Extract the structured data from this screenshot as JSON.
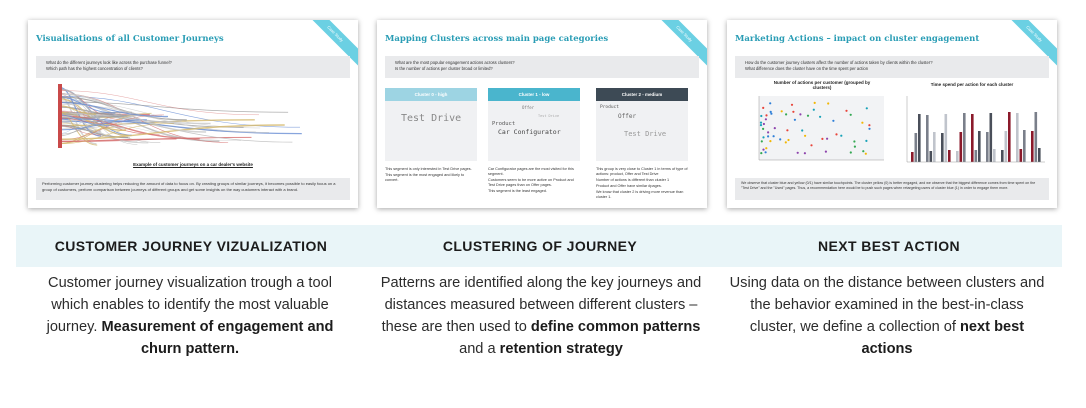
{
  "cards": [
    {
      "slide_title": "Visualisations of all Customer Journeys",
      "ribbon": "Case Study",
      "questions": [
        "What do the different journeys look like across the purchase funnel?",
        "Which path has the highest concentration of clients?"
      ],
      "caption": "Example of customer journeys on a car dealer's website",
      "bottom_text": "Performing customer journey clustering helps reducing the amount of data to focus on. By creating groups of similar journeys, it becomes possible to easily focus on a group of customers, perform comparison between journeys of different groups and get some insights on the way customers interact with a brand.",
      "heading": "CUSTOMER JOURNEY VIZUALIZATION",
      "desc_plain": "Customer journey visualization trough a tool which enables to identify the most valuable journey. ",
      "desc_bold": "Measurement of engagement and churn pattern."
    },
    {
      "slide_title": "Mapping Clusters across main page categories",
      "ribbon": "Case Study",
      "questions": [
        "What are the most popular engagement actions across clusters?",
        "Is the number of actions per cluster broad or limited?"
      ],
      "columns": [
        {
          "head": "Cluster 0 - high",
          "color": "#9dd4e3",
          "words": [
            "Test Drive"
          ],
          "bullets": [
            "This segment is only interested in Test Drive pages.",
            "This segment is the most engaged and likely to convert."
          ]
        },
        {
          "head": "Cluster 1 - low",
          "color": "#4ab5cd",
          "words": [
            "Offer",
            "Test Drive",
            "Product",
            "Car Configurator"
          ],
          "bullets": [
            "Car Configurator pages are the most visited for this segment.",
            "Customers seem to be more active on Product and Test Drive pages than on Offer pages.",
            "This segment is the least engaged."
          ]
        },
        {
          "head": "Cluster 2 - medium",
          "color": "#3d4a55",
          "words": [
            "Product",
            "Offer",
            "Test Drive"
          ],
          "bullets": [
            "This group is very close to Cluster 1 in terms of type of actions: product, Offer and Test Drive",
            "Number of actions is different than cluster 1",
            "Product and Offer have similar #pages.",
            "We know that cluster 2 is driving more revenue than cluster 1."
          ]
        }
      ],
      "heading": "CLUSTERING OF JOURNEY",
      "desc_1": "Patterns are identified along the key journeys and distances measured between different clusters – these are then used to ",
      "desc_bold_1": "define common patterns",
      "desc_2": " and a ",
      "desc_bold_2": "retention strategy"
    },
    {
      "slide_title": "Marketing Actions – impact on cluster engagement",
      "ribbon": "Case Study",
      "questions": [
        "How do the customer journey clusters affect the number of actions taken by clients within the cluster?",
        "What difference does the cluster have on the time spent per action"
      ],
      "chart1_title": "Number of actions per customer (grouped by clusters)",
      "chart2_title": "Time spend per action for each cluster",
      "bottom_text": "We observe that cluster blue and yellow (0/1) have similar touchpoints. The cluster yellow (0) is better engaged, and we observe that the biggest difference comes from time spent on the \"Test Drive\" and the \"Used\" pages. Thus, a recommendation here would be to push such pages when retargeting users of cluster blue (1) in order to engage them more.",
      "heading": "NEXT BEST ACTION",
      "desc_plain": "Using data on the distance between clusters and the behavior examined in the best-in-class cluster, we define a collection of ",
      "desc_bold": "next best actions"
    }
  ]
}
